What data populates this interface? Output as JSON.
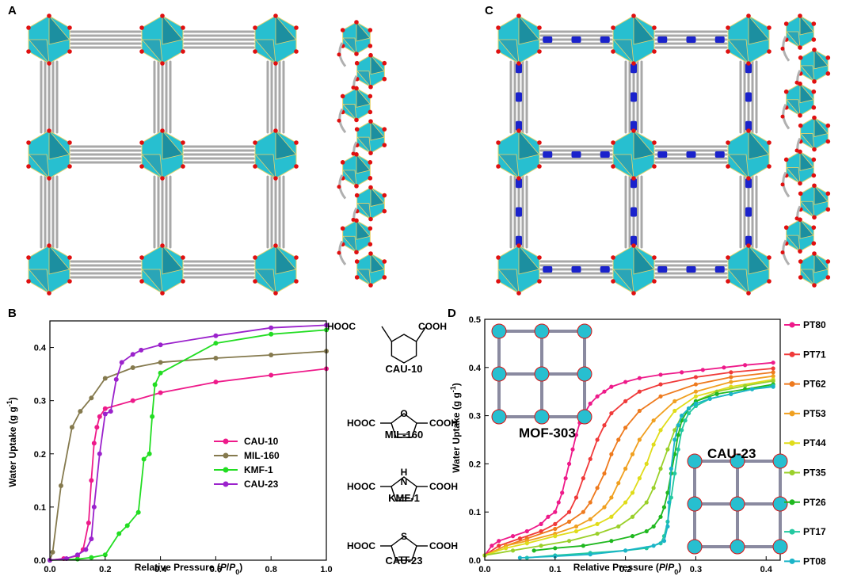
{
  "panels": {
    "a": "A",
    "b": "B",
    "c": "C",
    "d": "D"
  },
  "structures": {
    "left_color": "#27bfd0",
    "link_color": "#9a9a9a",
    "oxygen_color": "#e01010",
    "pyrrole_color": "#1a22cc"
  },
  "chart_data": [
    {
      "type": "line",
      "panel": "B",
      "xlabel": "Relative Pressure (P/P0)",
      "xlabel_parts": [
        "Relative Pressure (",
        "P",
        "/",
        "P",
        "0",
        ")"
      ],
      "ylabel": "Water Uptake (g g-1)",
      "ylabel_parts": [
        "Water Uptake (g g",
        "-1",
        ")"
      ],
      "xlim": [
        0,
        1
      ],
      "ylim": [
        0,
        0.45
      ],
      "xticks": [
        "0.0",
        "0.2",
        "0.4",
        "0.6",
        "0.8",
        "1.0"
      ],
      "xtick_values": [
        0,
        0.2,
        0.4,
        0.6,
        0.8,
        1.0
      ],
      "yticks": [
        "0.0",
        "0.1",
        "0.2",
        "0.3",
        "0.4"
      ],
      "ytick_values": [
        0,
        0.1,
        0.2,
        0.3,
        0.4
      ],
      "legend_position": "center-right",
      "series": [
        {
          "name": "CAU-10",
          "color": "#ee1a8a",
          "x": [
            0.0,
            0.05,
            0.1,
            0.12,
            0.14,
            0.15,
            0.16,
            0.17,
            0.18,
            0.2,
            0.3,
            0.4,
            0.6,
            0.8,
            1.0
          ],
          "y": [
            0.0,
            0.003,
            0.008,
            0.02,
            0.07,
            0.15,
            0.22,
            0.25,
            0.27,
            0.285,
            0.3,
            0.315,
            0.335,
            0.348,
            0.36
          ]
        },
        {
          "name": "MIL-160",
          "color": "#857a4e",
          "x": [
            0.0,
            0.01,
            0.04,
            0.08,
            0.11,
            0.15,
            0.2,
            0.3,
            0.4,
            0.6,
            0.8,
            1.0
          ],
          "y": [
            0.0,
            0.015,
            0.14,
            0.25,
            0.28,
            0.305,
            0.342,
            0.362,
            0.372,
            0.38,
            0.386,
            0.393
          ]
        },
        {
          "name": "KMF-1",
          "color": "#22dd22",
          "x": [
            0.0,
            0.1,
            0.15,
            0.2,
            0.25,
            0.28,
            0.32,
            0.34,
            0.36,
            0.37,
            0.38,
            0.4,
            0.6,
            0.8,
            1.0
          ],
          "y": [
            0.0,
            0.002,
            0.005,
            0.01,
            0.05,
            0.065,
            0.09,
            0.19,
            0.2,
            0.27,
            0.33,
            0.352,
            0.408,
            0.425,
            0.433
          ]
        },
        {
          "name": "CAU-23",
          "color": "#9b22cc",
          "x": [
            0.0,
            0.06,
            0.1,
            0.13,
            0.15,
            0.16,
            0.18,
            0.2,
            0.22,
            0.24,
            0.26,
            0.3,
            0.33,
            0.4,
            0.6,
            0.8,
            1.0
          ],
          "y": [
            0.0,
            0.003,
            0.01,
            0.02,
            0.04,
            0.1,
            0.2,
            0.275,
            0.28,
            0.34,
            0.372,
            0.387,
            0.395,
            0.405,
            0.422,
            0.437,
            0.442
          ]
        }
      ],
      "linkers": [
        {
          "name": "CAU-10",
          "left": "HOOC",
          "right": "COOH",
          "heteroatom": ""
        },
        {
          "name": "MIL-160",
          "left": "HOOC",
          "right": "COOH",
          "heteroatom": "O"
        },
        {
          "name": "KMF-1",
          "left": "HOOC",
          "right": "COOH",
          "heteroatom": "H\nN"
        },
        {
          "name": "CAU-23",
          "left": "HOOC",
          "right": "COOH",
          "heteroatom": "S"
        }
      ]
    },
    {
      "type": "line",
      "panel": "D",
      "xlabel": "Relative Pressure (P/P0)",
      "xlabel_parts": [
        "Relative Pressure (",
        "P",
        "/",
        "P",
        "0",
        ")"
      ],
      "ylabel": "Water Uptake (g g-1)",
      "ylabel_parts": [
        "Water Uptake (g g",
        "-1",
        ")"
      ],
      "xlim": [
        0,
        0.42
      ],
      "ylim": [
        0,
        0.5
      ],
      "xticks": [
        "0.0",
        "0.1",
        "0.2",
        "0.3",
        "0.4"
      ],
      "xtick_values": [
        0,
        0.1,
        0.2,
        0.3,
        0.4
      ],
      "yticks": [
        "0.0",
        "0.1",
        "0.2",
        "0.3",
        "0.4",
        "0.5"
      ],
      "ytick_values": [
        0,
        0.1,
        0.2,
        0.3,
        0.4,
        0.5
      ],
      "legend_position": "right",
      "insets": [
        {
          "label": "MOF-303"
        },
        {
          "label": "CAU-23"
        }
      ],
      "series": [
        {
          "name": "PT80",
          "color": "#ee1a8a",
          "x": [
            0.0,
            0.01,
            0.02,
            0.04,
            0.06,
            0.08,
            0.09,
            0.1,
            0.105,
            0.11,
            0.115,
            0.12,
            0.125,
            0.13,
            0.135,
            0.14,
            0.15,
            0.16,
            0.17,
            0.18,
            0.2,
            0.22,
            0.25,
            0.28,
            0.31,
            0.34,
            0.37,
            0.41
          ],
          "y": [
            0.01,
            0.03,
            0.04,
            0.05,
            0.06,
            0.075,
            0.09,
            0.1,
            0.12,
            0.14,
            0.17,
            0.2,
            0.23,
            0.26,
            0.285,
            0.3,
            0.325,
            0.34,
            0.35,
            0.36,
            0.37,
            0.378,
            0.385,
            0.39,
            0.395,
            0.4,
            0.405,
            0.41
          ]
        },
        {
          "name": "PT71",
          "color": "#f03a3a",
          "x": [
            0.0,
            0.02,
            0.05,
            0.08,
            0.1,
            0.12,
            0.13,
            0.14,
            0.15,
            0.16,
            0.17,
            0.18,
            0.2,
            0.22,
            0.25,
            0.3,
            0.35,
            0.41
          ],
          "y": [
            0.01,
            0.03,
            0.045,
            0.06,
            0.075,
            0.1,
            0.13,
            0.17,
            0.21,
            0.25,
            0.28,
            0.305,
            0.33,
            0.35,
            0.365,
            0.38,
            0.39,
            0.398
          ]
        },
        {
          "name": "PT62",
          "color": "#ee7a1e",
          "x": [
            0.0,
            0.03,
            0.06,
            0.1,
            0.12,
            0.14,
            0.15,
            0.16,
            0.17,
            0.18,
            0.19,
            0.2,
            0.22,
            0.25,
            0.3,
            0.35,
            0.41
          ],
          "y": [
            0.01,
            0.03,
            0.045,
            0.065,
            0.08,
            0.1,
            0.12,
            0.15,
            0.18,
            0.22,
            0.25,
            0.275,
            0.31,
            0.34,
            0.365,
            0.38,
            0.39
          ]
        },
        {
          "name": "PT53",
          "color": "#f0a020",
          "x": [
            0.0,
            0.03,
            0.06,
            0.1,
            0.13,
            0.15,
            0.17,
            0.18,
            0.19,
            0.2,
            0.21,
            0.22,
            0.24,
            0.27,
            0.3,
            0.35,
            0.41
          ],
          "y": [
            0.01,
            0.03,
            0.04,
            0.055,
            0.07,
            0.085,
            0.11,
            0.13,
            0.16,
            0.19,
            0.22,
            0.25,
            0.29,
            0.33,
            0.35,
            0.37,
            0.382
          ]
        },
        {
          "name": "PT44",
          "color": "#e0dc1a",
          "x": [
            0.0,
            0.03,
            0.06,
            0.1,
            0.13,
            0.16,
            0.18,
            0.2,
            0.21,
            0.22,
            0.23,
            0.24,
            0.25,
            0.27,
            0.3,
            0.35,
            0.41
          ],
          "y": [
            0.01,
            0.025,
            0.035,
            0.05,
            0.06,
            0.075,
            0.09,
            0.12,
            0.14,
            0.17,
            0.2,
            0.24,
            0.27,
            0.31,
            0.34,
            0.36,
            0.375
          ]
        },
        {
          "name": "PT35",
          "color": "#9ad02a",
          "x": [
            0.0,
            0.04,
            0.08,
            0.12,
            0.16,
            0.19,
            0.21,
            0.23,
            0.24,
            0.25,
            0.26,
            0.27,
            0.28,
            0.3,
            0.33,
            0.37,
            0.41
          ],
          "y": [
            0.01,
            0.02,
            0.03,
            0.04,
            0.055,
            0.07,
            0.09,
            0.12,
            0.15,
            0.19,
            0.23,
            0.27,
            0.3,
            0.33,
            0.35,
            0.362,
            0.372
          ]
        },
        {
          "name": "PT26",
          "color": "#1fb81f",
          "x": [
            0.07,
            0.1,
            0.14,
            0.18,
            0.21,
            0.23,
            0.24,
            0.25,
            0.255,
            0.26,
            0.265,
            0.27,
            0.275,
            0.28,
            0.29,
            0.3,
            0.33,
            0.37,
            0.41
          ],
          "y": [
            0.02,
            0.025,
            0.03,
            0.04,
            0.05,
            0.06,
            0.07,
            0.09,
            0.11,
            0.14,
            0.18,
            0.22,
            0.26,
            0.29,
            0.315,
            0.33,
            0.345,
            0.355,
            0.365
          ]
        },
        {
          "name": "PT17",
          "color": "#22c8a0",
          "x": [
            0.06,
            0.1,
            0.15,
            0.2,
            0.23,
            0.25,
            0.255,
            0.26,
            0.265,
            0.27,
            0.275,
            0.28,
            0.285,
            0.29,
            0.3,
            0.32,
            0.35,
            0.38,
            0.41
          ],
          "y": [
            0.005,
            0.01,
            0.015,
            0.02,
            0.025,
            0.035,
            0.05,
            0.08,
            0.13,
            0.18,
            0.23,
            0.27,
            0.29,
            0.305,
            0.32,
            0.335,
            0.345,
            0.355,
            0.362
          ]
        },
        {
          "name": "PT08",
          "color": "#1ab4c8",
          "x": [
            0.05,
            0.1,
            0.15,
            0.2,
            0.24,
            0.255,
            0.26,
            0.262,
            0.265,
            0.27,
            0.275,
            0.28,
            0.29,
            0.3,
            0.32,
            0.35,
            0.38,
            0.41
          ],
          "y": [
            0.005,
            0.008,
            0.012,
            0.02,
            0.03,
            0.04,
            0.07,
            0.12,
            0.19,
            0.25,
            0.28,
            0.3,
            0.315,
            0.325,
            0.335,
            0.345,
            0.355,
            0.36
          ]
        }
      ]
    }
  ]
}
